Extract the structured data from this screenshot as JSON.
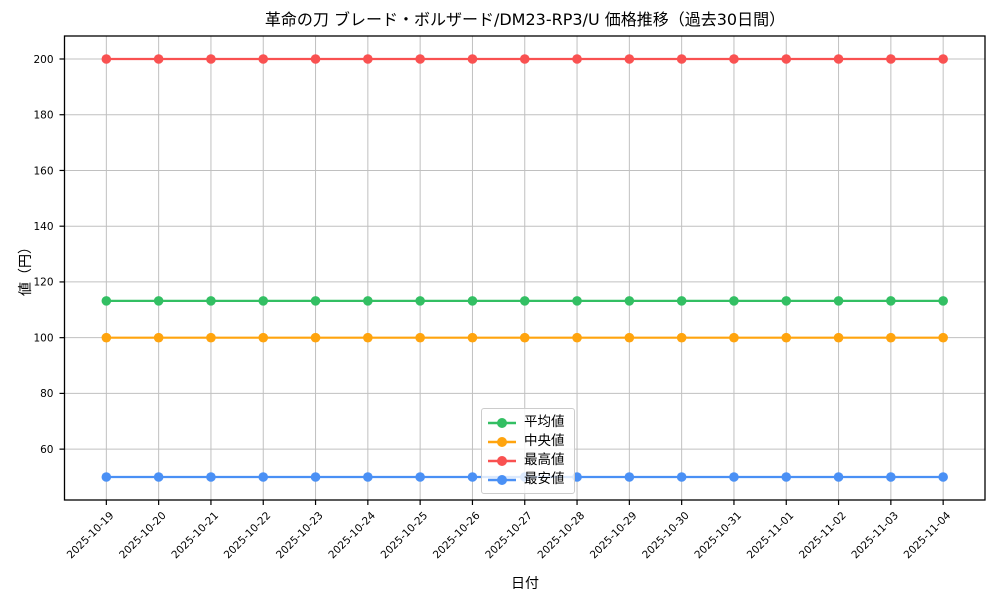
{
  "chart_data": {
    "type": "line",
    "title": "革命の刀 ブレード・ボルザード/DM23-RP3/U 価格推移（過去30日間）",
    "xlabel": "日付",
    "ylabel": "値（円）",
    "x": [
      "2025-10-19",
      "2025-10-20",
      "2025-10-21",
      "2025-10-22",
      "2025-10-23",
      "2025-10-24",
      "2025-10-25",
      "2025-10-26",
      "2025-10-27",
      "2025-10-28",
      "2025-10-29",
      "2025-10-30",
      "2025-10-31",
      "2025-11-01",
      "2025-11-02",
      "2025-11-03",
      "2025-11-04"
    ],
    "series": [
      {
        "name": "平均値",
        "color": "#33bf63",
        "values": [
          113.2,
          113.2,
          113.2,
          113.2,
          113.2,
          113.2,
          113.2,
          113.2,
          113.2,
          113.2,
          113.2,
          113.2,
          113.2,
          113.2,
          113.2,
          113.2,
          113.2
        ]
      },
      {
        "name": "中央値",
        "color": "#ffa40e",
        "values": [
          100,
          100,
          100,
          100,
          100,
          100,
          100,
          100,
          100,
          100,
          100,
          100,
          100,
          100,
          100,
          100,
          100
        ]
      },
      {
        "name": "最高値",
        "color": "#f95151",
        "values": [
          200,
          200,
          200,
          200,
          200,
          200,
          200,
          200,
          200,
          200,
          200,
          200,
          200,
          200,
          200,
          200,
          200
        ]
      },
      {
        "name": "最安値",
        "color": "#4a90f5",
        "values": [
          50,
          50,
          50,
          50,
          50,
          50,
          50,
          50,
          50,
          50,
          50,
          50,
          50,
          50,
          50,
          50,
          50
        ]
      }
    ],
    "yticks": [
      60,
      80,
      100,
      120,
      140,
      160,
      180,
      200
    ],
    "ylim": [
      41.75,
      208.25
    ],
    "grid": true,
    "legend_position": "lower center",
    "style": {
      "grid_color": "#c0c0c0",
      "axis_color": "#000000",
      "background": "#ffffff",
      "text_color": "#000000"
    }
  }
}
